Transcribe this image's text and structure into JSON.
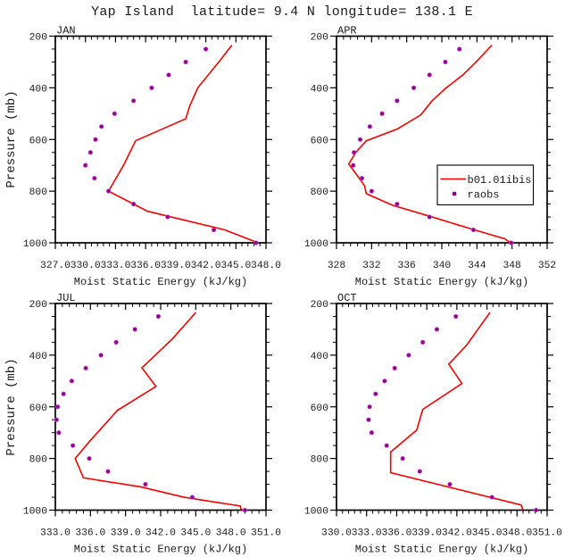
{
  "title": "Yap Island  latitude= 9.4 N longitude= 138.1 E",
  "legend": {
    "line_label": "b01.01ibis",
    "dot_label": "raobs"
  },
  "colors": {
    "model_line": "#f20000",
    "raobs_dot": "#8f008f",
    "frame": "#000000",
    "text": "#1a1a1a"
  },
  "axes": {
    "xlabel": "Moist Static Energy (kJ/kg)",
    "ylabel": "Pressure (mb)",
    "y_range": [
      200,
      1000
    ],
    "y_tick_values": [
      200,
      400,
      600,
      800,
      1000
    ],
    "y_tick_labels": [
      "200",
      "400",
      "600",
      "800",
      "1000"
    ],
    "y_minor_step": 50
  },
  "raobs_levels_mb": [
    250,
    300,
    350,
    400,
    450,
    500,
    550,
    600,
    650,
    700,
    750,
    800,
    850,
    900,
    950,
    1000
  ],
  "chart_data": [
    {
      "type": "line+scatter",
      "label": "JAN",
      "x_range": [
        327,
        348
      ],
      "x_tick_values": [
        327,
        330,
        333,
        336,
        339,
        342,
        345,
        348
      ],
      "x_tick_labels": [
        "327.0",
        "330.0",
        "333.0",
        "336.0",
        "339.0",
        "342.0",
        "345.0",
        "348.0"
      ],
      "x_minor_step": 0.6,
      "series": [
        {
          "name": "b01.01ibis",
          "type": "line",
          "points_pressure_value": [
            [
              235,
              344.6
            ],
            [
              300,
              343.3
            ],
            [
              400,
              341.2
            ],
            [
              470,
              340.4
            ],
            [
              520,
              340.0
            ],
            [
              605,
              335.0
            ],
            [
              700,
              333.8
            ],
            [
              800,
              332.3
            ],
            [
              878,
              336.2
            ],
            [
              950,
              343.9
            ],
            [
              1000,
              347.2
            ]
          ]
        },
        {
          "name": "raobs",
          "type": "scatter",
          "values": [
            342.0,
            340.0,
            338.3,
            336.6,
            334.8,
            332.9,
            331.6,
            331.0,
            330.5,
            330.0,
            330.9,
            332.3,
            334.8,
            338.2,
            342.8,
            347.0
          ]
        }
      ]
    },
    {
      "type": "line+scatter",
      "label": "APR",
      "x_range": [
        328,
        352
      ],
      "x_tick_values": [
        328,
        332,
        336,
        340,
        344,
        348,
        352
      ],
      "x_tick_labels": [
        "328",
        "332",
        "336",
        "340",
        "344",
        "348",
        "352"
      ],
      "x_minor_step": 0.8,
      "series": [
        {
          "name": "b01.01ibis",
          "type": "line",
          "points_pressure_value": [
            [
              235,
              345.7
            ],
            [
              300,
              343.9
            ],
            [
              350,
              342.4
            ],
            [
              400,
              340.5
            ],
            [
              450,
              338.9
            ],
            [
              505,
              337.6
            ],
            [
              560,
              334.9
            ],
            [
              605,
              331.4
            ],
            [
              650,
              330.2
            ],
            [
              695,
              329.4
            ],
            [
              755,
              330.7
            ],
            [
              780,
              331.2
            ],
            [
              810,
              331.4
            ],
            [
              855,
              334.4
            ],
            [
              900,
              338.9
            ],
            [
              950,
              343.7
            ],
            [
              985,
              347.2
            ],
            [
              1000,
              347.8
            ]
          ]
        },
        {
          "name": "raobs",
          "type": "scatter",
          "values": [
            342.0,
            340.4,
            338.6,
            336.8,
            334.9,
            333.2,
            331.8,
            330.7,
            330.0,
            329.9,
            330.9,
            332.0,
            334.9,
            338.6,
            343.6,
            347.9
          ]
        }
      ]
    },
    {
      "type": "line+scatter",
      "label": "JUL",
      "x_range": [
        333,
        351
      ],
      "x_tick_values": [
        333,
        336,
        339,
        342,
        345,
        348,
        351
      ],
      "x_tick_labels": [
        "333.0",
        "336.0",
        "339.0",
        "342.0",
        "345.0",
        "348.0",
        "351.0"
      ],
      "x_minor_step": 0.6,
      "series": [
        {
          "name": "b01.01ibis",
          "type": "line",
          "points_pressure_value": [
            [
              235,
              345.0
            ],
            [
              337,
              343.0
            ],
            [
              449,
              340.4
            ],
            [
              521,
              341.6
            ],
            [
              614,
              338.3
            ],
            [
              735,
              335.9
            ],
            [
              800,
              334.7
            ],
            [
              875,
              335.4
            ],
            [
              910,
              340.3
            ],
            [
              950,
              344.0
            ],
            [
              984,
              348.8
            ],
            [
              1000,
              348.9
            ]
          ]
        },
        {
          "name": "raobs",
          "type": "scatter",
          "values": [
            341.8,
            339.8,
            338.2,
            336.9,
            335.6,
            334.4,
            333.7,
            333.2,
            333.1,
            333.3,
            334.5,
            335.9,
            337.5,
            340.7,
            344.7,
            349.2
          ]
        }
      ]
    },
    {
      "type": "line+scatter",
      "label": "OCT",
      "x_range": [
        330,
        351
      ],
      "x_tick_values": [
        330,
        333,
        336,
        339,
        342,
        345,
        348,
        351
      ],
      "x_tick_labels": [
        "330.0",
        "333.0",
        "336.0",
        "339.0",
        "342.0",
        "345.0",
        "348.0",
        "351.0"
      ],
      "x_minor_step": 0.6,
      "series": [
        {
          "name": "b01.01ibis",
          "type": "line",
          "points_pressure_value": [
            [
              235,
              345.3
            ],
            [
              300,
              344.1
            ],
            [
              360,
              343.0
            ],
            [
              435,
              341.2
            ],
            [
              510,
              342.5
            ],
            [
              610,
              338.6
            ],
            [
              690,
              338.0
            ],
            [
              775,
              335.4
            ],
            [
              855,
              335.4
            ],
            [
              980,
              348.4
            ],
            [
              1000,
              348.6
            ]
          ]
        },
        {
          "name": "raobs",
          "type": "scatter",
          "values": [
            341.9,
            340.0,
            338.6,
            337.2,
            335.8,
            334.8,
            333.9,
            333.3,
            333.2,
            333.5,
            335.0,
            336.6,
            338.3,
            341.3,
            345.5,
            349.9
          ]
        }
      ]
    }
  ]
}
